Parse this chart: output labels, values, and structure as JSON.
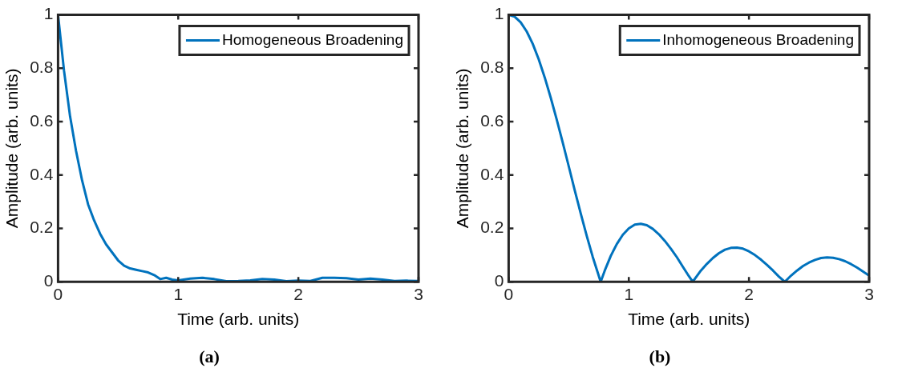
{
  "chart_data": [
    {
      "type": "line",
      "title": "(a)",
      "xlabel": "Time (arb. units)",
      "ylabel": "Amplitude (arb. units)",
      "xlim": [
        0,
        3
      ],
      "xticks": [
        0,
        1,
        2,
        3
      ],
      "ylim": [
        0,
        1
      ],
      "yticks": [
        0,
        0.2,
        0.4,
        0.6,
        0.8,
        1
      ],
      "grid": false,
      "legend": "top right",
      "line_style": "solid",
      "series": [
        {
          "name": "Homogeneous Broadening",
          "color": "#0072bd",
          "x": [
            0,
            0.05,
            0.1,
            0.15,
            0.2,
            0.25,
            0.3,
            0.35,
            0.4,
            0.45,
            0.5,
            0.55,
            0.6,
            0.65,
            0.7,
            0.75,
            0.8,
            0.85,
            0.9,
            0.95,
            1.0,
            1.1,
            1.2,
            1.3,
            1.4,
            1.5,
            1.6,
            1.7,
            1.8,
            1.9,
            2.0,
            2.1,
            2.2,
            2.3,
            2.4,
            2.5,
            2.6,
            2.7,
            2.8,
            2.9,
            3.0
          ],
          "values": [
            1,
            0.79,
            0.62,
            0.49,
            0.38,
            0.29,
            0.23,
            0.18,
            0.14,
            0.11,
            0.08,
            0.06,
            0.05,
            0.045,
            0.04,
            0.035,
            0.025,
            0.01,
            0.015,
            0.008,
            0.005,
            0.012,
            0.015,
            0.01,
            0.002,
            0.003,
            0.005,
            0.01,
            0.008,
            0.002,
            0.004,
            0.003,
            0.015,
            0.015,
            0.013,
            0.008,
            0.012,
            0.008,
            0.003,
            0.004,
            0.003
          ]
        }
      ]
    },
    {
      "type": "line",
      "title": "(b)",
      "xlabel": "Time (arb. units)",
      "ylabel": "Amplitude (arb. units)",
      "xlim": [
        0,
        3
      ],
      "xticks": [
        0,
        1,
        2,
        3
      ],
      "ylim": [
        0,
        1
      ],
      "yticks": [
        0,
        0.2,
        0.4,
        0.6,
        0.8,
        1
      ],
      "grid": false,
      "legend": "top right",
      "line_style": "solid",
      "series": [
        {
          "name": "Inhomogeneous Broadening",
          "color": "#0072bd",
          "x": [
            0,
            0.05,
            0.1,
            0.15,
            0.2,
            0.25,
            0.3,
            0.35,
            0.4,
            0.45,
            0.5,
            0.55,
            0.6,
            0.65,
            0.7,
            0.766,
            0.8,
            0.85,
            0.9,
            0.95,
            1.0,
            1.05,
            1.1,
            1.15,
            1.2,
            1.25,
            1.3,
            1.35,
            1.4,
            1.45,
            1.5,
            1.532,
            1.6,
            1.65,
            1.7,
            1.75,
            1.8,
            1.85,
            1.9,
            1.95,
            2.0,
            2.05,
            2.1,
            2.15,
            2.2,
            2.25,
            2.298,
            2.35,
            2.4,
            2.45,
            2.5,
            2.55,
            2.6,
            2.65,
            2.7,
            2.75,
            2.8,
            2.85,
            2.9,
            2.95,
            3.0
          ],
          "values": [
            1,
            0.993,
            0.972,
            0.938,
            0.892,
            0.834,
            0.766,
            0.69,
            0.608,
            0.522,
            0.433,
            0.343,
            0.256,
            0.172,
            0.093,
            0,
            0.042,
            0.097,
            0.141,
            0.176,
            0.2,
            0.214,
            0.217,
            0.212,
            0.198,
            0.178,
            0.153,
            0.124,
            0.092,
            0.056,
            0.021,
            0,
            0.042,
            0.067,
            0.089,
            0.107,
            0.12,
            0.127,
            0.128,
            0.124,
            0.114,
            0.1,
            0.083,
            0.063,
            0.042,
            0.019,
            0,
            0.023,
            0.042,
            0.059,
            0.072,
            0.082,
            0.089,
            0.091,
            0.09,
            0.085,
            0.077,
            0.066,
            0.053,
            0.038,
            0.023
          ]
        }
      ]
    }
  ]
}
